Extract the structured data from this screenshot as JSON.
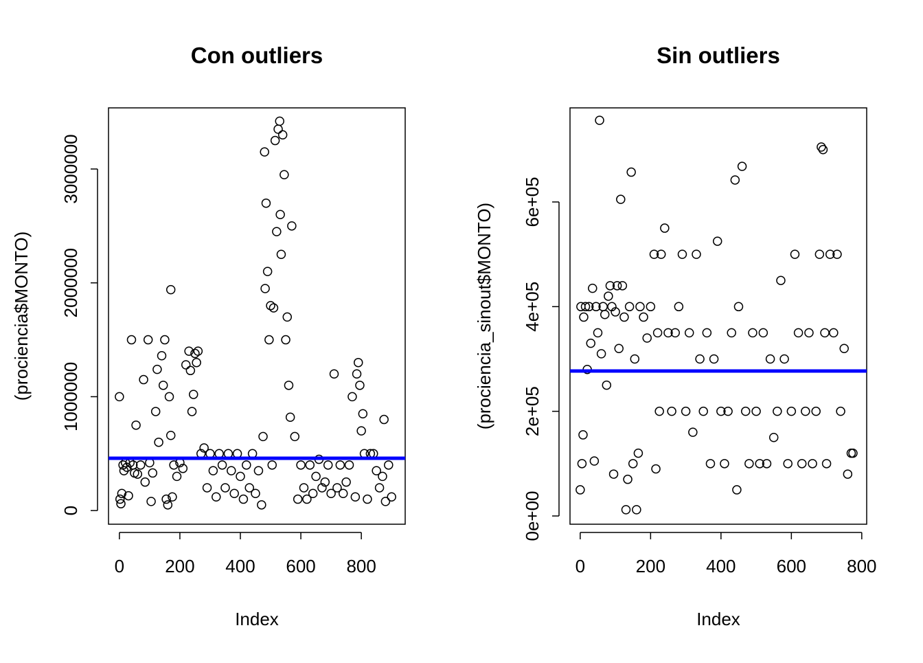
{
  "chart_data": [
    {
      "type": "scatter",
      "title": "Con outliers",
      "x_label": "Index",
      "y_label": "(prociencia$MONTO)",
      "xlim": [
        -36,
        945
      ],
      "ylim": [
        -120000,
        3537000
      ],
      "xticks": [
        0,
        200,
        400,
        600,
        800
      ],
      "yticks": [
        0,
        1000000,
        2000000,
        3000000
      ],
      "point_color": "#000000",
      "hline": 459000,
      "hline_color": "#0000ff",
      "x": [
        0,
        2,
        5,
        8,
        12,
        15,
        20,
        25,
        30,
        35,
        40,
        45,
        50,
        55,
        60,
        70,
        80,
        85,
        95,
        100,
        105,
        110,
        120,
        125,
        130,
        140,
        145,
        150,
        155,
        160,
        165,
        170,
        170,
        175,
        180,
        190,
        200,
        210,
        220,
        230,
        235,
        240,
        245,
        250,
        255,
        260,
        270,
        280,
        290,
        300,
        310,
        320,
        330,
        340,
        350,
        360,
        370,
        380,
        390,
        400,
        410,
        420,
        430,
        440,
        450,
        460,
        470,
        475,
        480,
        482,
        485,
        490,
        495,
        500,
        505,
        510,
        515,
        520,
        525,
        530,
        532,
        535,
        540,
        545,
        550,
        555,
        560,
        565,
        570,
        580,
        590,
        600,
        610,
        620,
        630,
        640,
        650,
        660,
        670,
        680,
        690,
        700,
        710,
        720,
        730,
        740,
        750,
        760,
        770,
        780,
        785,
        790,
        795,
        800,
        805,
        810,
        820,
        830,
        840,
        850,
        860,
        870,
        875,
        880,
        890,
        900
      ],
      "values": [
        1000000,
        100000,
        60000,
        150000,
        400000,
        350000,
        420000,
        380000,
        130000,
        420000,
        1500000,
        400000,
        330000,
        750000,
        320000,
        400000,
        1150000,
        250000,
        1500000,
        420000,
        80000,
        330000,
        870000,
        1240000,
        600000,
        1360000,
        1100000,
        1500000,
        100000,
        50000,
        1000000,
        1940000,
        660000,
        120000,
        400000,
        300000,
        420000,
        370000,
        1280000,
        1400000,
        1230000,
        870000,
        1020000,
        1380000,
        1300000,
        1400000,
        500000,
        550000,
        200000,
        500000,
        350000,
        120000,
        500000,
        400000,
        200000,
        500000,
        350000,
        150000,
        500000,
        300000,
        100000,
        400000,
        200000,
        500000,
        150000,
        350000,
        50000,
        650000,
        3150000,
        1950000,
        2700000,
        2100000,
        1500000,
        1800000,
        400000,
        1780000,
        3250000,
        2450000,
        3350000,
        3420000,
        2600000,
        2250000,
        3300000,
        2950000,
        1500000,
        1700000,
        1100000,
        820000,
        2500000,
        650000,
        100000,
        400000,
        200000,
        100000,
        400000,
        150000,
        300000,
        450000,
        200000,
        250000,
        400000,
        150000,
        1200000,
        200000,
        400000,
        150000,
        250000,
        400000,
        1000000,
        120000,
        1200000,
        1300000,
        1100000,
        700000,
        850000,
        500000,
        100000,
        500000,
        500000,
        350000,
        200000,
        300000,
        800000,
        80000,
        400000,
        120000
      ]
    },
    {
      "type": "scatter",
      "title": "Sin outliers",
      "x_label": "Index",
      "y_label": "(prociencia_sinout$MONTO)",
      "xlim": [
        -29,
        814
      ],
      "ylim": [
        -15750,
        779800
      ],
      "xticks": [
        0,
        200,
        400,
        600,
        800
      ],
      "yticks": [
        {
          "value": 0,
          "label": "0e+00"
        },
        {
          "value": 200000,
          "label": "2e+05"
        },
        {
          "value": 400000,
          "label": "4e+05"
        },
        {
          "value": 600000,
          "label": "6e+05"
        }
      ],
      "point_color": "#000000",
      "hline": 277000,
      "hline_color": "#0000ff",
      "x": [
        0,
        2,
        5,
        8,
        10,
        15,
        20,
        25,
        30,
        35,
        40,
        45,
        50,
        55,
        60,
        65,
        70,
        75,
        80,
        85,
        90,
        95,
        100,
        105,
        110,
        115,
        120,
        125,
        130,
        135,
        140,
        145,
        150,
        155,
        160,
        165,
        170,
        180,
        190,
        200,
        210,
        215,
        220,
        225,
        230,
        240,
        250,
        260,
        270,
        280,
        290,
        300,
        310,
        320,
        330,
        340,
        350,
        360,
        370,
        380,
        390,
        400,
        410,
        420,
        430,
        440,
        445,
        450,
        460,
        470,
        480,
        490,
        500,
        510,
        520,
        530,
        540,
        550,
        560,
        570,
        580,
        590,
        600,
        610,
        620,
        630,
        640,
        650,
        660,
        670,
        680,
        685,
        690,
        695,
        700,
        710,
        720,
        730,
        740,
        750,
        760,
        770,
        775
      ],
      "values": [
        50000,
        400000,
        100000,
        155000,
        380000,
        400000,
        280000,
        400000,
        330000,
        435000,
        105000,
        400000,
        350000,
        756000,
        310000,
        400000,
        385000,
        250000,
        420000,
        440000,
        400000,
        80000,
        390000,
        440000,
        320000,
        605000,
        440000,
        380000,
        12000,
        70000,
        400000,
        657000,
        100000,
        300000,
        12000,
        120000,
        400000,
        380000,
        340000,
        400000,
        500000,
        90000,
        350000,
        200000,
        500000,
        550000,
        350000,
        200000,
        350000,
        400000,
        500000,
        200000,
        350000,
        160000,
        500000,
        300000,
        200000,
        350000,
        100000,
        300000,
        525000,
        200000,
        100000,
        200000,
        350000,
        642000,
        50000,
        400000,
        668000,
        200000,
        100000,
        350000,
        200000,
        100000,
        350000,
        100000,
        300000,
        150000,
        200000,
        450000,
        300000,
        100000,
        200000,
        500000,
        350000,
        100000,
        200000,
        350000,
        100000,
        200000,
        500000,
        705000,
        700000,
        350000,
        100000,
        500000,
        350000,
        500000,
        200000,
        320000,
        80000,
        120000,
        120000
      ]
    }
  ]
}
